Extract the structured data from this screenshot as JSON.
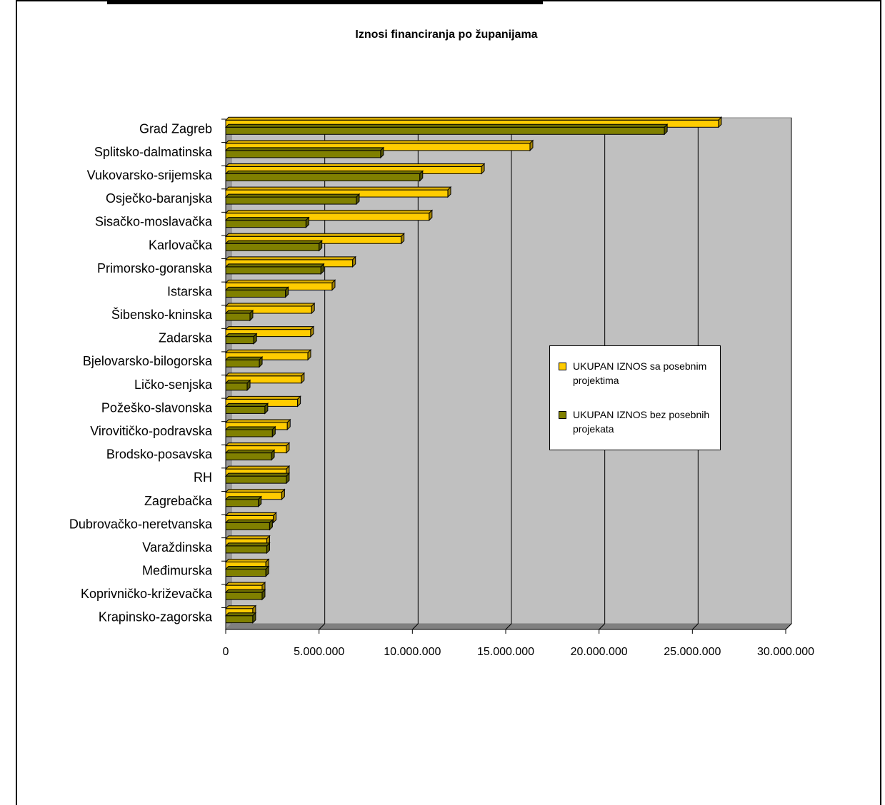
{
  "chart_data": {
    "type": "bar",
    "orientation": "horizontal",
    "title": "Iznosi financiranja po županijama",
    "xlabel": "",
    "ylabel": "",
    "xlim": [
      0,
      30000000
    ],
    "x_ticks": [
      "0",
      "5.000.000",
      "10.000.000",
      "15.000.000",
      "20.000.000",
      "25.000.000",
      "30.000.000"
    ],
    "grid": true,
    "legend_position": "right",
    "categories": [
      "Grad Zagreb",
      "Splitsko-dalmatinska",
      "Vukovarsko-srijemska",
      "Osječko-baranjska",
      "Sisačko-moslavačka",
      "Karlovačka",
      "Primorsko-goranska",
      "Istarska",
      "Šibensko-kninska",
      "Zadarska",
      "Bjelovarsko-bilogorska",
      "Ličko-senjska",
      "Požeško-slavonska",
      "Virovitičko-podravska",
      "Brodsko-posavska",
      "RH",
      "Zagrebačka",
      "Dubrovačko-neretvanska",
      "Varaždinska",
      "Međimurska",
      "Koprivničko-križevačka",
      "Krapinsko-zagorska"
    ],
    "series": [
      {
        "name": "UKUPAN IZNOS sa posebnim projektima",
        "color": "#FFCC00",
        "values": [
          26400000,
          16300000,
          13700000,
          11900000,
          10900000,
          9400000,
          6800000,
          5700000,
          4600000,
          4550000,
          4400000,
          4050000,
          3850000,
          3300000,
          3250000,
          3250000,
          3000000,
          2550000,
          2200000,
          2150000,
          1950000,
          1450000
        ]
      },
      {
        "name": "UKUPAN IZNOS bez posebnih projekata",
        "color": "#808000",
        "values": [
          23500000,
          8300000,
          10400000,
          7000000,
          4300000,
          5000000,
          5100000,
          3200000,
          1300000,
          1500000,
          1800000,
          1150000,
          2100000,
          2500000,
          2450000,
          3250000,
          1750000,
          2350000,
          2200000,
          2150000,
          1950000,
          1450000
        ]
      }
    ]
  }
}
